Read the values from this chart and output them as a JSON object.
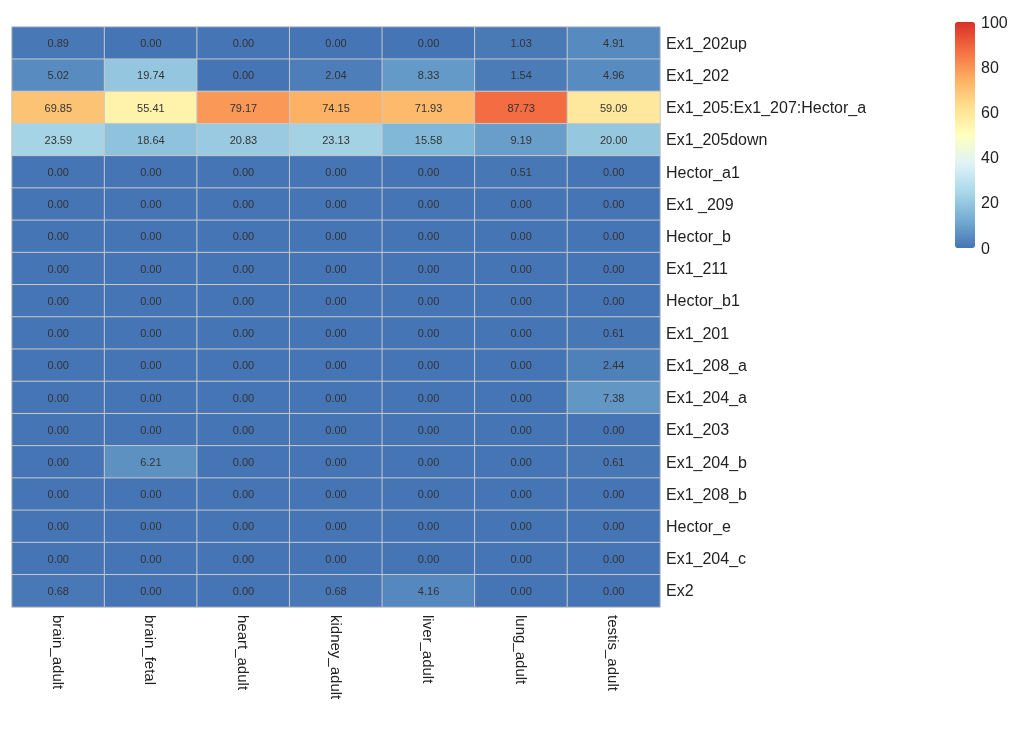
{
  "chart_data": {
    "type": "heatmap",
    "categories": [
      "brain_adult",
      "brain_fetal",
      "heart_adult",
      "kidney_adult",
      "liver_adult",
      "lung_adult",
      "testis_adult"
    ],
    "y_categories": [
      "Ex1_202up",
      "Ex1_202",
      "Ex1_205:Ex1_207:Hector_a",
      "Ex1_205down",
      "Hector_a1",
      "Ex1 _209",
      "Hector_b",
      "Ex1_211",
      "Hector_b1",
      "Ex1_201",
      "Ex1_208_a",
      "Ex1_204_a",
      "Ex1_203",
      "Ex1_204_b",
      "Ex1_208_b",
      "Hector_e",
      "Ex1_204_c",
      "Ex2"
    ],
    "cells": [
      [
        0.89,
        0,
        0,
        0,
        0,
        1.03,
        4.91
      ],
      [
        5.02,
        19.74,
        0,
        2.04,
        8.33,
        1.54,
        4.96
      ],
      [
        69.85,
        55.41,
        79.17,
        74.15,
        71.93,
        87.73,
        59.09
      ],
      [
        23.59,
        18.64,
        20.83,
        23.13,
        15.58,
        9.19,
        20
      ],
      [
        0,
        0,
        0,
        0,
        0,
        0.51,
        0
      ],
      [
        0,
        0,
        0,
        0,
        0,
        0,
        0
      ],
      [
        0,
        0,
        0,
        0,
        0,
        0,
        0
      ],
      [
        0,
        0,
        0,
        0,
        0,
        0,
        0
      ],
      [
        0,
        0,
        0,
        0,
        0,
        0,
        0
      ],
      [
        0,
        0,
        0,
        0,
        0,
        0,
        0.61
      ],
      [
        0,
        0,
        0,
        0,
        0,
        0,
        2.44
      ],
      [
        0,
        0,
        0,
        0,
        0,
        0,
        7.38
      ],
      [
        0,
        0,
        0,
        0,
        0,
        0,
        0
      ],
      [
        0,
        6.21,
        0,
        0,
        0,
        0,
        0.61
      ],
      [
        0,
        0,
        0,
        0,
        0,
        0,
        0
      ],
      [
        0,
        0,
        0,
        0,
        0,
        0,
        0
      ],
      [
        0,
        0,
        0,
        0,
        0,
        0,
        0
      ],
      [
        0.68,
        0,
        0,
        0.68,
        4.16,
        0,
        0
      ]
    ],
    "cell_labels": [
      [
        "0.89",
        "0.00",
        "0.00",
        "0.00",
        "0.00",
        "1.03",
        "4.91"
      ],
      [
        "5.02",
        "19.74",
        "0.00",
        "2.04",
        "8.33",
        "1.54",
        "4.96"
      ],
      [
        "69.85",
        "55.41",
        "79.17",
        "74.15",
        "71.93",
        "87.73",
        "59.09"
      ],
      [
        "23.59",
        "18.64",
        "20.83",
        "23.13",
        "15.58",
        "9.19",
        "20.00"
      ],
      [
        "0.00",
        "0.00",
        "0.00",
        "0.00",
        "0.00",
        "0.51",
        "0.00"
      ],
      [
        "0.00",
        "0.00",
        "0.00",
        "0.00",
        "0.00",
        "0.00",
        "0.00"
      ],
      [
        "0.00",
        "0.00",
        "0.00",
        "0.00",
        "0.00",
        "0.00",
        "0.00"
      ],
      [
        "0.00",
        "0.00",
        "0.00",
        "0.00",
        "0.00",
        "0.00",
        "0.00"
      ],
      [
        "0.00",
        "0.00",
        "0.00",
        "0.00",
        "0.00",
        "0.00",
        "0.00"
      ],
      [
        "0.00",
        "0.00",
        "0.00",
        "0.00",
        "0.00",
        "0.00",
        "0.61"
      ],
      [
        "0.00",
        "0.00",
        "0.00",
        "0.00",
        "0.00",
        "0.00",
        "2.44"
      ],
      [
        "0.00",
        "0.00",
        "0.00",
        "0.00",
        "0.00",
        "0.00",
        "7.38"
      ],
      [
        "0.00",
        "0.00",
        "0.00",
        "0.00",
        "0.00",
        "0.00",
        "0.00"
      ],
      [
        "0.00",
        "6.21",
        "0.00",
        "0.00",
        "0.00",
        "0.00",
        "0.61"
      ],
      [
        "0.00",
        "0.00",
        "0.00",
        "0.00",
        "0.00",
        "0.00",
        "0.00"
      ],
      [
        "0.00",
        "0.00",
        "0.00",
        "0.00",
        "0.00",
        "0.00",
        "0.00"
      ],
      [
        "0.00",
        "0.00",
        "0.00",
        "0.00",
        "0.00",
        "0.00",
        "0.00"
      ],
      [
        "0.68",
        "0.00",
        "0.00",
        "0.68",
        "4.16",
        "0.00",
        "0.00"
      ]
    ],
    "clim": [
      0,
      100
    ],
    "cticks": [
      0,
      20,
      40,
      60,
      80,
      100
    ]
  }
}
